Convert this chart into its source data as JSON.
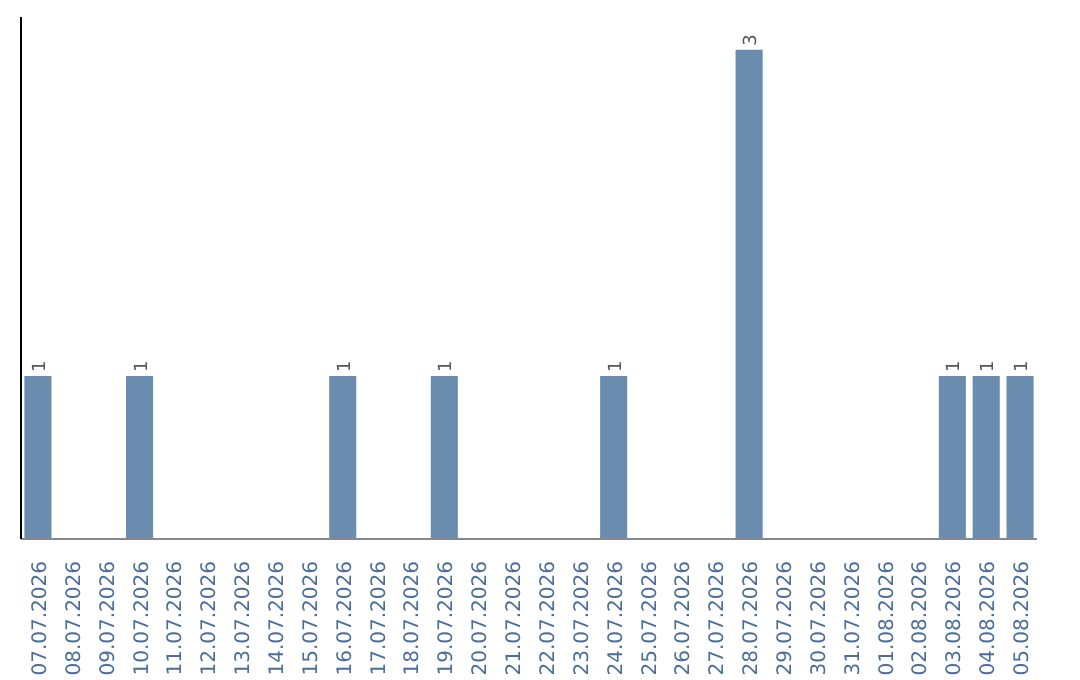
{
  "chart_data": {
    "type": "bar",
    "categories": [
      "07.07.2026",
      "08.07.2026",
      "09.07.2026",
      "10.07.2026",
      "11.07.2026",
      "12.07.2026",
      "13.07.2026",
      "14.07.2026",
      "15.07.2026",
      "16.07.2026",
      "17.07.2026",
      "18.07.2026",
      "19.07.2026",
      "20.07.2026",
      "21.07.2026",
      "22.07.2026",
      "23.07.2026",
      "24.07.2026",
      "25.07.2026",
      "26.07.2026",
      "27.07.2026",
      "28.07.2026",
      "29.07.2026",
      "30.07.2026",
      "31.07.2026",
      "01.08.2026",
      "02.08.2026",
      "03.08.2026",
      "04.08.2026",
      "05.08.2026"
    ],
    "values": [
      1,
      0,
      0,
      1,
      0,
      0,
      0,
      0,
      0,
      1,
      0,
      0,
      1,
      0,
      0,
      0,
      0,
      1,
      0,
      0,
      0,
      3,
      0,
      0,
      0,
      0,
      0,
      1,
      1,
      1
    ],
    "value_labels": [
      "1",
      null,
      null,
      "1",
      null,
      null,
      null,
      null,
      null,
      "1",
      null,
      null,
      "1",
      null,
      null,
      null,
      null,
      "1",
      null,
      null,
      null,
      "3",
      null,
      null,
      null,
      null,
      null,
      "1",
      "1",
      "1"
    ],
    "color": "#6a8cae",
    "ylim": [
      0,
      3.2
    ],
    "tick_labels": "x",
    "grid": false
  }
}
